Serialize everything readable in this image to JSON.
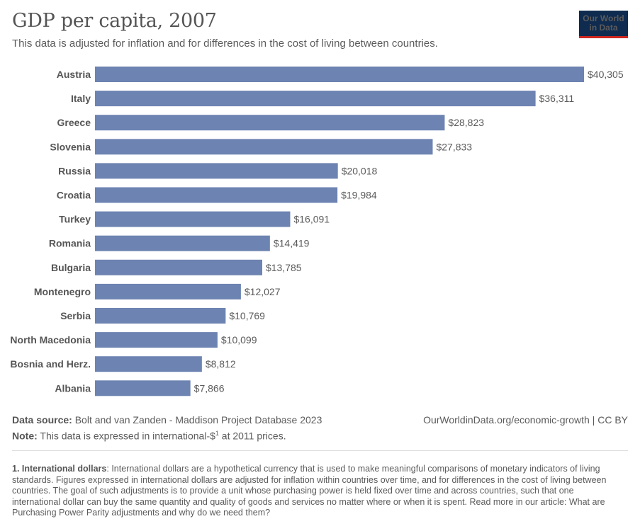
{
  "header": {
    "title": "GDP per capita, 2007",
    "subtitle": "This data is adjusted for inflation and for differences in the cost of living between countries.",
    "logo_line1": "Our World",
    "logo_line2": "in Data"
  },
  "colors": {
    "bar": "#6d83b1",
    "logo_bg": "#0f2b4f",
    "logo_accent": "#ce261e"
  },
  "chart_data": {
    "type": "bar",
    "orientation": "horizontal",
    "categories": [
      "Austria",
      "Italy",
      "Greece",
      "Slovenia",
      "Russia",
      "Croatia",
      "Turkey",
      "Romania",
      "Bulgaria",
      "Montenegro",
      "Serbia",
      "North Macedonia",
      "Bosnia and Herz.",
      "Albania"
    ],
    "values": [
      40305,
      36311,
      28823,
      27833,
      20018,
      19984,
      16091,
      14419,
      13785,
      12027,
      10769,
      10099,
      8812,
      7866
    ],
    "value_labels": [
      "$40,305",
      "$36,311",
      "$28,823",
      "$27,833",
      "$20,018",
      "$19,984",
      "$16,091",
      "$14,419",
      "$13,785",
      "$12,027",
      "$10,769",
      "$10,099",
      "$8,812",
      "$7,866"
    ],
    "title": "GDP per capita, 2007",
    "xlim": [
      0,
      40305
    ],
    "grid": false
  },
  "footer": {
    "source_label": "Data source:",
    "source_text": "Bolt and van Zanden - Maddison Project Database 2023",
    "note_label": "Note:",
    "note_text_before": "This data is expressed in international-$",
    "note_sup": "1",
    "note_text_after": " at 2011 prices.",
    "link": "OurWorldinData.org/economic-growth | CC BY"
  },
  "footnote": {
    "label": "1. International dollars",
    "text": ": International dollars are a hypothetical currency that is used to make meaningful comparisons of monetary indicators of living standards. Figures expressed in international dollars are adjusted for inflation within countries over time, and for differences in the cost of living between countries. The goal of such adjustments is to provide a unit whose purchasing power is held fixed over time and across countries, such that one international dollar can buy the same quantity and quality of goods and services no matter where or when it is spent. Read more in our article: What are Purchasing Power Parity adjustments and why do we need them?"
  }
}
